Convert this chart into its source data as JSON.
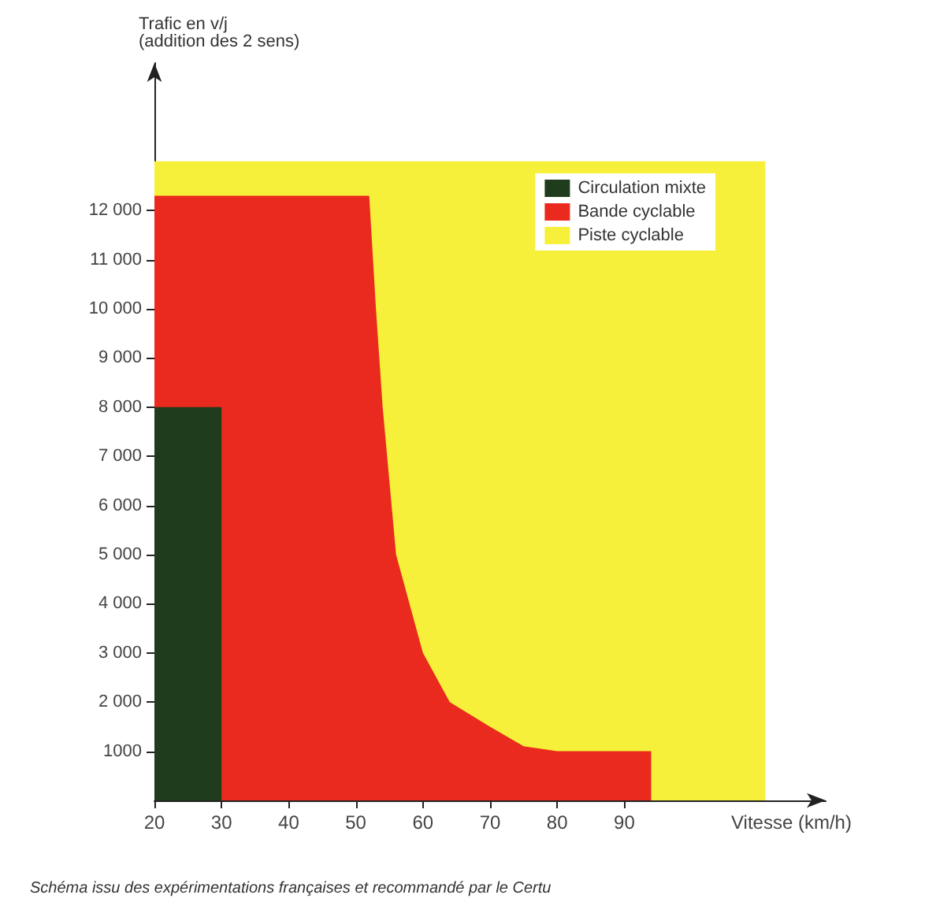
{
  "chart_data": {
    "type": "area",
    "xlabel": "Vitesse (km/h)",
    "ylabel": "Trafic en v/j\n(addition des 2 sens)",
    "xlim": [
      20,
      120
    ],
    "xticks": [
      20,
      30,
      40,
      50,
      60,
      70,
      80,
      90
    ],
    "ylim": [
      0,
      15000
    ],
    "yticks": [
      1000,
      {
        "value": 2000,
        "label": "2 000"
      },
      {
        "value": 3000,
        "label": "3 000"
      },
      {
        "value": 4000,
        "label": "4 000"
      },
      {
        "value": 5000,
        "label": "5 000"
      },
      {
        "value": 6000,
        "label": "6 000"
      },
      {
        "value": 7000,
        "label": "7 000"
      },
      {
        "value": 8000,
        "label": "8 000"
      },
      {
        "value": 9000,
        "label": "9 000"
      },
      {
        "value": 10000,
        "label": "10 000"
      },
      {
        "value": 11000,
        "label": "11 000"
      },
      {
        "value": 12000,
        "label": "12 000"
      }
    ],
    "series": [
      {
        "name": "Circulation mixte",
        "color": "#1f3d1c",
        "x": [
          20,
          30,
          30
        ],
        "values": [
          8000,
          8000,
          0
        ]
      },
      {
        "name": "Bande cyclable",
        "color": "#ea2a1f",
        "x": [
          20,
          52,
          53,
          54,
          56,
          58,
          60,
          64,
          70,
          75,
          80,
          94,
          94
        ],
        "values": [
          12300,
          12300,
          10000,
          8000,
          5000,
          4000,
          3000,
          2000,
          1500,
          1100,
          1000,
          1000,
          0
        ]
      },
      {
        "name": "Piste cyclable",
        "color": "#f7f03a",
        "x": [
          20,
          111,
          111
        ],
        "values": [
          13000,
          13000,
          0
        ]
      }
    ],
    "grid": false,
    "legend": "top right",
    "marker": "none",
    "annotations": [
      "Schéma issu des expérimentations françaises et recommandé par le Certu"
    ]
  }
}
